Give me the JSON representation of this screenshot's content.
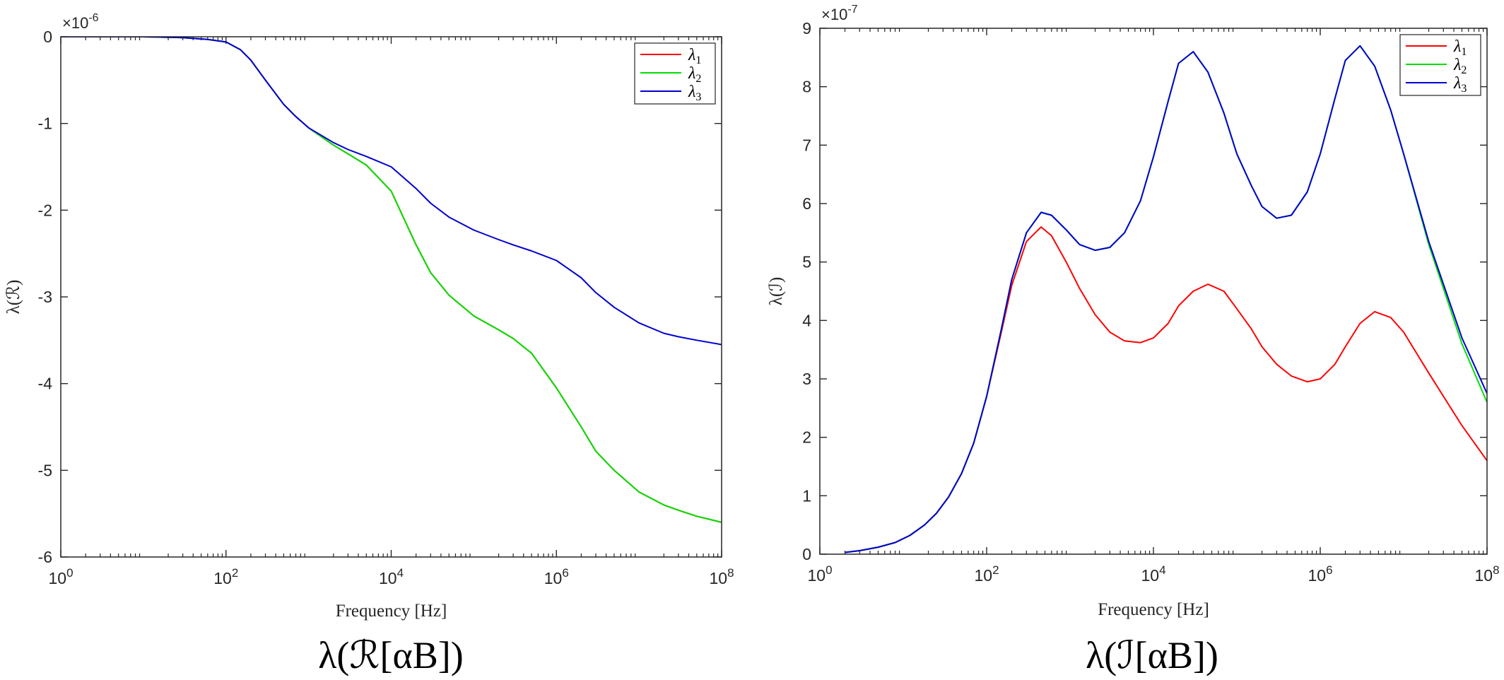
{
  "chart_data": [
    {
      "type": "line",
      "panel": "left",
      "caption": "λ(ℛ[αB])",
      "xlabel": "Frequency [Hz]",
      "ylabel": "λ(ℛ)",
      "xscale": "log",
      "xlim": [
        1,
        100000000
      ],
      "ylim": [
        -6,
        0
      ],
      "y_multiplier": "×10-6",
      "x_ticks": [
        {
          "v": 1,
          "label": "10",
          "exp": "0"
        },
        {
          "v": 100,
          "label": "10",
          "exp": "2"
        },
        {
          "v": 10000,
          "label": "10",
          "exp": "4"
        },
        {
          "v": 1000000,
          "label": "10",
          "exp": "6"
        },
        {
          "v": 100000000,
          "label": "10",
          "exp": "8"
        }
      ],
      "y_ticks": [
        {
          "v": 0,
          "label": "0"
        },
        {
          "v": -1,
          "label": "-1"
        },
        {
          "v": -2,
          "label": "-2"
        },
        {
          "v": -3,
          "label": "-3"
        },
        {
          "v": -4,
          "label": "-4"
        },
        {
          "v": -5,
          "label": "-5"
        },
        {
          "v": -6,
          "label": "-6"
        }
      ],
      "legend_position": "top-right",
      "x": [
        1,
        10,
        30,
        60,
        100,
        150,
        200,
        300,
        500,
        700,
        1000,
        2000,
        3000,
        5000,
        10000,
        20000,
        30000,
        50000,
        100000,
        200000,
        300000,
        500000,
        1000000,
        2000000,
        3000000,
        5000000,
        10000000,
        20000000,
        30000000,
        50000000,
        100000000
      ],
      "series": [
        {
          "name": "λ1",
          "color": "#ff0000",
          "values": [
            0,
            0,
            -0.01,
            -0.03,
            -0.06,
            -0.15,
            -0.27,
            -0.5,
            -0.78,
            -0.92,
            -1.05,
            -1.25,
            -1.35,
            -1.48,
            -1.78,
            -2.4,
            -2.72,
            -2.98,
            -3.22,
            -3.38,
            -3.48,
            -3.65,
            -4.05,
            -4.5,
            -4.78,
            -5.0,
            -5.25,
            -5.4,
            -5.46,
            -5.53,
            -5.6
          ]
        },
        {
          "name": "λ2",
          "color": "#00e000",
          "values": [
            0,
            0,
            -0.01,
            -0.03,
            -0.06,
            -0.15,
            -0.27,
            -0.5,
            -0.78,
            -0.92,
            -1.05,
            -1.25,
            -1.35,
            -1.48,
            -1.78,
            -2.4,
            -2.72,
            -2.98,
            -3.22,
            -3.38,
            -3.48,
            -3.65,
            -4.05,
            -4.5,
            -4.78,
            -5.0,
            -5.25,
            -5.4,
            -5.46,
            -5.53,
            -5.6
          ]
        },
        {
          "name": "λ3",
          "color": "#0000d0",
          "values": [
            0,
            0,
            -0.01,
            -0.03,
            -0.06,
            -0.15,
            -0.27,
            -0.5,
            -0.78,
            -0.92,
            -1.05,
            -1.22,
            -1.3,
            -1.38,
            -1.5,
            -1.75,
            -1.92,
            -2.08,
            -2.23,
            -2.34,
            -2.4,
            -2.47,
            -2.58,
            -2.78,
            -2.95,
            -3.12,
            -3.3,
            -3.42,
            -3.46,
            -3.5,
            -3.55
          ]
        }
      ]
    },
    {
      "type": "line",
      "panel": "right",
      "caption": "λ(ℐ[αB])",
      "xlabel": "Frequency [Hz]",
      "ylabel": "λ(ℐ)",
      "xscale": "log",
      "xlim": [
        1,
        100000000
      ],
      "ylim": [
        0,
        9
      ],
      "y_multiplier": "×10-7",
      "x_ticks": [
        {
          "v": 1,
          "label": "10",
          "exp": "0"
        },
        {
          "v": 100,
          "label": "10",
          "exp": "2"
        },
        {
          "v": 10000,
          "label": "10",
          "exp": "4"
        },
        {
          "v": 1000000,
          "label": "10",
          "exp": "6"
        },
        {
          "v": 100000000,
          "label": "10",
          "exp": "8"
        }
      ],
      "y_ticks": [
        {
          "v": 0,
          "label": "0"
        },
        {
          "v": 1,
          "label": "1"
        },
        {
          "v": 2,
          "label": "2"
        },
        {
          "v": 3,
          "label": "3"
        },
        {
          "v": 4,
          "label": "4"
        },
        {
          "v": 5,
          "label": "5"
        },
        {
          "v": 6,
          "label": "6"
        },
        {
          "v": 7,
          "label": "7"
        },
        {
          "v": 8,
          "label": "8"
        },
        {
          "v": 9,
          "label": "9"
        }
      ],
      "legend_position": "top-right",
      "x": [
        2,
        3,
        5,
        8,
        12,
        18,
        25,
        35,
        50,
        70,
        100,
        150,
        200,
        300,
        450,
        600,
        900,
        1300,
        2000,
        3000,
        4500,
        7000,
        10000,
        15000,
        20000,
        30000,
        45000,
        70000,
        100000,
        150000,
        200000,
        300000,
        450000,
        700000,
        1000000,
        1500000,
        2000000,
        3000000,
        4500000,
        7000000,
        10000000,
        20000000,
        50000000,
        100000000
      ],
      "series": [
        {
          "name": "λ1",
          "color": "#ff0000",
          "values": [
            0.03,
            0.06,
            0.12,
            0.2,
            0.32,
            0.5,
            0.7,
            0.98,
            1.38,
            1.9,
            2.7,
            3.8,
            4.6,
            5.35,
            5.6,
            5.45,
            5.0,
            4.55,
            4.1,
            3.8,
            3.65,
            3.62,
            3.7,
            3.95,
            4.25,
            4.5,
            4.62,
            4.5,
            4.2,
            3.85,
            3.55,
            3.25,
            3.05,
            2.95,
            3.0,
            3.25,
            3.55,
            3.95,
            4.15,
            4.05,
            3.8,
            3.1,
            2.2,
            1.6
          ]
        },
        {
          "name": "λ2",
          "color": "#00e000",
          "values": [
            0.03,
            0.06,
            0.12,
            0.2,
            0.32,
            0.5,
            0.7,
            0.98,
            1.38,
            1.9,
            2.7,
            3.85,
            4.7,
            5.5,
            5.85,
            5.8,
            5.55,
            5.3,
            5.2,
            5.25,
            5.5,
            6.05,
            6.8,
            7.75,
            8.4,
            8.6,
            8.25,
            7.55,
            6.85,
            6.3,
            5.95,
            5.75,
            5.8,
            6.2,
            6.85,
            7.8,
            8.45,
            8.7,
            8.35,
            7.6,
            6.85,
            5.3,
            3.6,
            2.6
          ]
        },
        {
          "name": "λ3",
          "color": "#0000d0",
          "values": [
            0.03,
            0.06,
            0.12,
            0.2,
            0.32,
            0.5,
            0.7,
            0.98,
            1.38,
            1.9,
            2.7,
            3.85,
            4.7,
            5.5,
            5.85,
            5.8,
            5.55,
            5.3,
            5.2,
            5.25,
            5.5,
            6.05,
            6.8,
            7.75,
            8.4,
            8.6,
            8.25,
            7.55,
            6.85,
            6.3,
            5.95,
            5.75,
            5.8,
            6.2,
            6.85,
            7.8,
            8.45,
            8.7,
            8.35,
            7.6,
            6.85,
            5.35,
            3.7,
            2.75
          ]
        }
      ]
    }
  ]
}
